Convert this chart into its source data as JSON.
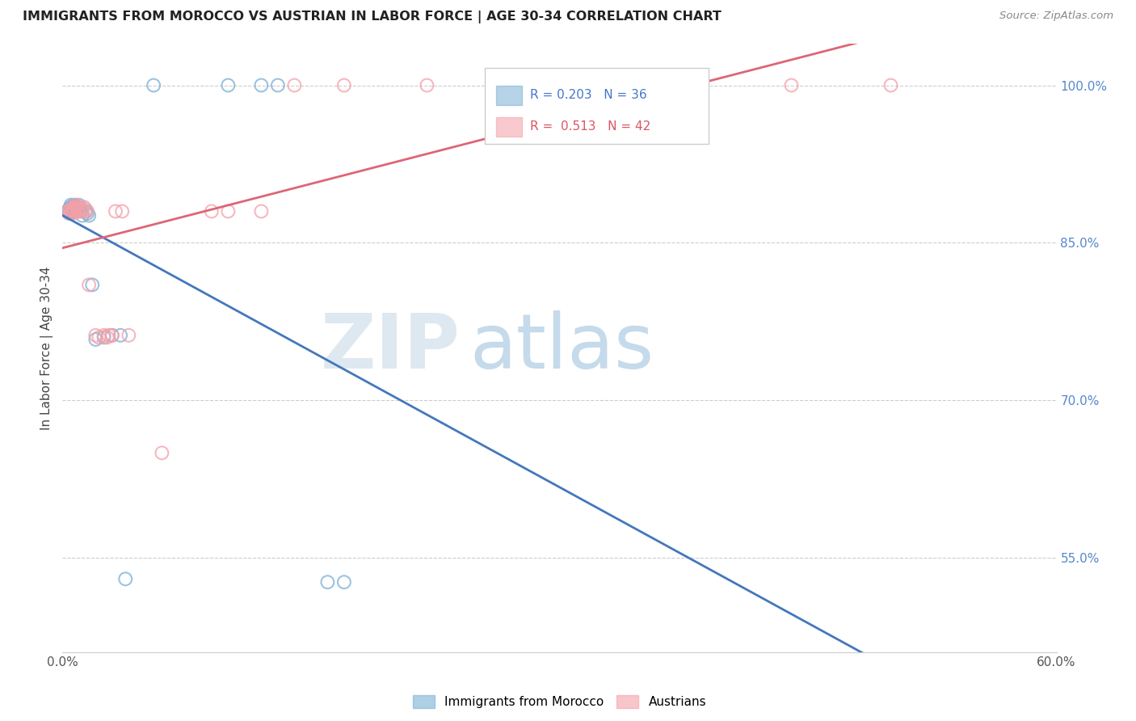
{
  "title": "IMMIGRANTS FROM MOROCCO VS AUSTRIAN IN LABOR FORCE | AGE 30-34 CORRELATION CHART",
  "source": "Source: ZipAtlas.com",
  "ylabel": "In Labor Force | Age 30-34",
  "xlim": [
    0.0,
    0.6
  ],
  "ylim": [
    0.46,
    1.04
  ],
  "xtick_positions": [
    0.0,
    0.1,
    0.2,
    0.3,
    0.4,
    0.5,
    0.6
  ],
  "xticklabels": [
    "0.0%",
    "",
    "",
    "",
    "",
    "",
    "60.0%"
  ],
  "yticks_right": [
    0.55,
    0.7,
    0.85,
    1.0
  ],
  "ytick_right_labels": [
    "55.0%",
    "70.0%",
    "85.0%",
    "100.0%"
  ],
  "blue_R": 0.203,
  "blue_N": 36,
  "pink_R": 0.513,
  "pink_N": 42,
  "blue_color": "#7BAFD4",
  "pink_color": "#F4A0A8",
  "blue_line_color": "#4477BB",
  "pink_line_color": "#DD6677",
  "legend_label_blue": "Immigrants from Morocco",
  "legend_label_pink": "Austrians",
  "blue_x": [
    0.003,
    0.004,
    0.004,
    0.005,
    0.005,
    0.006,
    0.006,
    0.006,
    0.007,
    0.007,
    0.007,
    0.008,
    0.008,
    0.008,
    0.009,
    0.009,
    0.01,
    0.01,
    0.01,
    0.011,
    0.012,
    0.014,
    0.015,
    0.016,
    0.018,
    0.02,
    0.025,
    0.03,
    0.035,
    0.038,
    0.055,
    0.1,
    0.12,
    0.13,
    0.16,
    0.17
  ],
  "blue_y": [
    0.88,
    0.882,
    0.878,
    0.884,
    0.886,
    0.88,
    0.882,
    0.884,
    0.88,
    0.882,
    0.886,
    0.88,
    0.883,
    0.885,
    0.884,
    0.88,
    0.882,
    0.884,
    0.886,
    0.88,
    0.876,
    0.88,
    0.878,
    0.876,
    0.81,
    0.758,
    0.76,
    0.762,
    0.762,
    0.53,
    1.0,
    1.0,
    1.0,
    1.0,
    0.527,
    0.527
  ],
  "pink_x": [
    0.003,
    0.004,
    0.005,
    0.005,
    0.006,
    0.006,
    0.007,
    0.007,
    0.007,
    0.008,
    0.008,
    0.009,
    0.009,
    0.01,
    0.01,
    0.011,
    0.012,
    0.013,
    0.014,
    0.015,
    0.016,
    0.02,
    0.022,
    0.025,
    0.027,
    0.028,
    0.03,
    0.032,
    0.036,
    0.04,
    0.06,
    0.09,
    0.1,
    0.12,
    0.14,
    0.17,
    0.22,
    0.27,
    0.32,
    0.38,
    0.44,
    0.5
  ],
  "pink_y": [
    0.88,
    0.88,
    0.882,
    0.878,
    0.878,
    0.882,
    0.884,
    0.882,
    0.88,
    0.884,
    0.886,
    0.88,
    0.882,
    0.88,
    0.884,
    0.882,
    0.88,
    0.884,
    0.882,
    0.88,
    0.81,
    0.762,
    0.76,
    0.762,
    0.76,
    0.762,
    0.762,
    0.88,
    0.88,
    0.762,
    0.65,
    0.88,
    0.88,
    0.88,
    1.0,
    1.0,
    1.0,
    1.0,
    1.0,
    1.0,
    1.0,
    1.0
  ]
}
